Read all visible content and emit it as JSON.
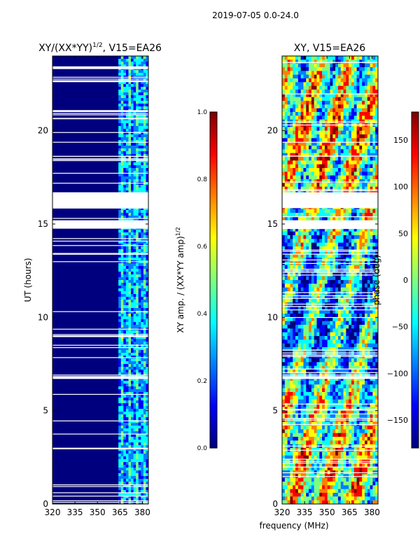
{
  "suptitle": "2019-07-05 0.0-24.0",
  "shared_xlabel": "frequency (MHz)",
  "colors": {
    "jet": [
      "#00007f",
      "#0000ff",
      "#007fff",
      "#00ffff",
      "#7fff7f",
      "#ffff00",
      "#ff7f00",
      "#ff0000",
      "#7f0000"
    ],
    "gap": "#ffffff"
  },
  "chart_data": [
    {
      "type": "heatmap",
      "title_main": "XY/(XX*YY)",
      "title_sup": "1/2",
      "title_rest": ", V15=EA26",
      "xlabel": "",
      "ylabel": "UT (hours)",
      "xlim": [
        320,
        384
      ],
      "ylim": [
        0,
        24
      ],
      "xticks": [
        320,
        335,
        350,
        365,
        380
      ],
      "yticks": [
        0,
        5,
        10,
        15,
        20
      ],
      "low_band_value": 0.0,
      "high_band_start_mhz": 364,
      "data_gaps_hours": [
        [
          14.75,
          15.2
        ],
        [
          15.85,
          16.7
        ],
        [
          6.7,
          6.85
        ],
        [
          18.6,
          18.65
        ],
        [
          21.0,
          21.1
        ],
        [
          22.6,
          22.7
        ],
        [
          23.3,
          23.4
        ]
      ],
      "colorbar": {
        "label_main": "XY amp. / (XX*YY amp)",
        "label_sup": "1/2",
        "range": [
          0.0,
          1.0
        ],
        "ticks": [
          "0.0",
          "0.2",
          "0.4",
          "0.6",
          "0.8",
          "1.0"
        ]
      }
    },
    {
      "type": "heatmap",
      "title_main": "XY, V15=EA26",
      "xlabel": "frequency (MHz)",
      "ylabel": "",
      "xlim": [
        320,
        384
      ],
      "ylim": [
        0,
        24
      ],
      "xticks": [
        320,
        335,
        350,
        365,
        380
      ],
      "yticks": [
        0,
        5,
        10,
        15,
        20
      ],
      "data_gaps_hours": [
        [
          15.85,
          16.7
        ],
        [
          14.75,
          15.2
        ],
        [
          6.7,
          6.85
        ]
      ],
      "colorbar": {
        "label_main": "phase (deg)",
        "range": [
          -180,
          180
        ],
        "ticks": [
          "−150",
          "−100",
          "−50",
          "0",
          "50",
          "100",
          "150"
        ],
        "tick_values": [
          -150,
          -100,
          -50,
          0,
          50,
          100,
          150
        ]
      }
    }
  ]
}
